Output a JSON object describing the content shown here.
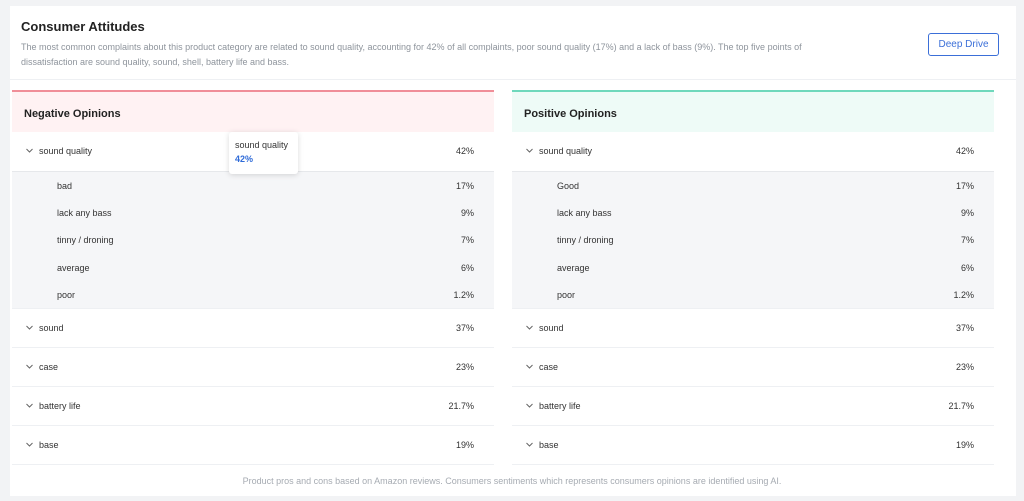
{
  "header": {
    "title": "Consumer Attitudes",
    "description": "The most common complaints about this product category are related to sound quality, accounting for 42% of all complaints, poor sound quality (17%) and a lack of bass (9%). The top five points of dissatisfaction are sound quality, sound, shell, battery life and bass.",
    "deep_drive_label": "Deep Drive"
  },
  "negative": {
    "title": "Negative Opinions",
    "accent": "#f08e98",
    "expanded": {
      "label": "sound quality",
      "value": "42%"
    },
    "sub_items": [
      {
        "label": "bad",
        "value": "17%"
      },
      {
        "label": "lack any bass",
        "value": "9%"
      },
      {
        "label": "tinny / droning",
        "value": "7%"
      },
      {
        "label": "average",
        "value": "6%"
      },
      {
        "label": "poor",
        "value": "1.2%"
      }
    ],
    "items": [
      {
        "label": "sound",
        "value": "37%"
      },
      {
        "label": "case",
        "value": "23%"
      },
      {
        "label": "battery life",
        "value": "21.7%"
      },
      {
        "label": "base",
        "value": "19%"
      }
    ]
  },
  "positive": {
    "title": "Positive Opinions",
    "accent": "#6fd8bc",
    "expanded": {
      "label": "sound quality",
      "value": "42%"
    },
    "sub_items": [
      {
        "label": "Good",
        "value": "17%"
      },
      {
        "label": "lack any bass",
        "value": "9%"
      },
      {
        "label": "tinny / droning",
        "value": "7%"
      },
      {
        "label": "average",
        "value": "6%"
      },
      {
        "label": "poor",
        "value": "1.2%"
      }
    ],
    "items": [
      {
        "label": "sound",
        "value": "37%"
      },
      {
        "label": "case",
        "value": "23%"
      },
      {
        "label": "battery life",
        "value": "21.7%"
      },
      {
        "label": "base",
        "value": "19%"
      }
    ]
  },
  "tooltip": {
    "title": "sound quality",
    "value": "42%"
  },
  "footer": "Product pros and cons based on Amazon reviews. Consumers sentiments which represents consumers opinions are identified using AI."
}
